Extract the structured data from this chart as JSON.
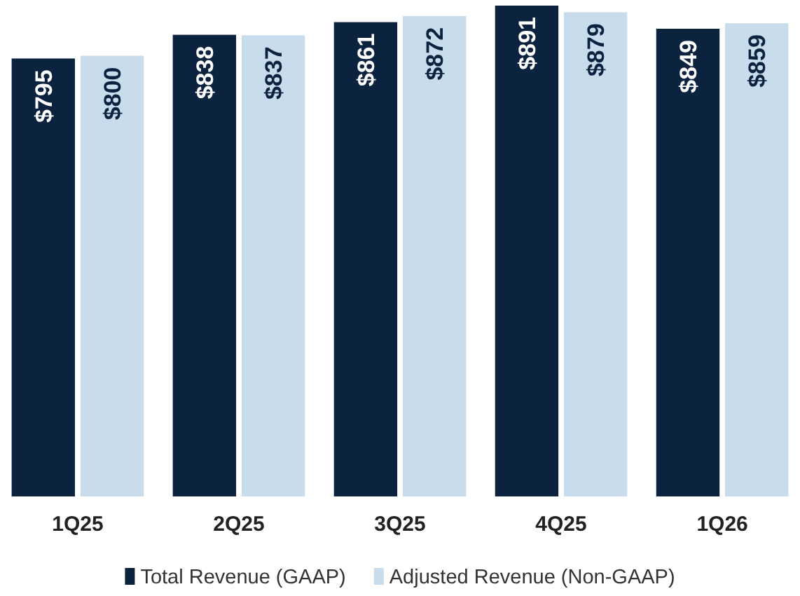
{
  "chart_data": {
    "type": "bar",
    "categories": [
      "1Q25",
      "2Q25",
      "3Q25",
      "4Q25",
      "1Q26"
    ],
    "series": [
      {
        "name": "Total Revenue (GAAP)",
        "color": "#0c2340",
        "values": [
          795,
          838,
          861,
          891,
          849
        ],
        "value_labels": [
          "$795",
          "$838",
          "$861",
          "$891",
          "$849"
        ]
      },
      {
        "name": "Adjusted Revenue (Non-GAAP)",
        "color": "#c8dcec",
        "values": [
          800,
          837,
          872,
          879,
          859
        ],
        "value_labels": [
          "$800",
          "$837",
          "$872",
          "$879",
          "$859"
        ]
      }
    ],
    "tick_labels": "x",
    "grid": false,
    "legend": "bottom"
  }
}
